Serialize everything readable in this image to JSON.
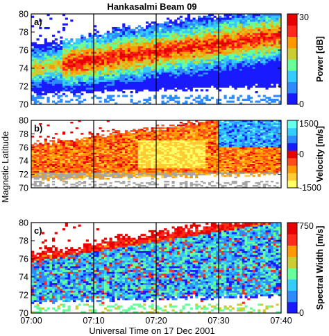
{
  "chart_data": {
    "type": "heatmap",
    "title": "Hankasalmi Beam 09",
    "xlabel": "Universal Time on 17 Dec 2001",
    "x_ticks": [
      "07:00",
      "07:10",
      "07:20",
      "07:30",
      "07:40"
    ],
    "x_range_minutes": [
      0,
      40
    ],
    "marker_lines_minutes": [
      10,
      20,
      30
    ],
    "shared_ylabel": "Magnetic Latitude",
    "ylim": [
      70,
      80
    ],
    "y_ticks": [
      "70",
      "72",
      "74",
      "76",
      "78",
      "80"
    ],
    "panels": [
      {
        "label": "a)",
        "quantity": "Power",
        "colorbar_label": "Power [dB]",
        "colorbar_ticks": [
          "0",
          "30"
        ],
        "colorbar_range": [
          0,
          30
        ],
        "colormap": [
          "#1a1aff",
          "#2e8bff",
          "#33ccff",
          "#66ff99",
          "#cccc33",
          "#ff9900",
          "#ff2a1a",
          "#e60000"
        ]
      },
      {
        "label": "b)",
        "quantity": "Velocity",
        "colorbar_label": "Velocity [m/s]",
        "colorbar_ticks": [
          "-1500",
          "0",
          "1500"
        ],
        "colorbar_range": [
          -1500,
          1500
        ],
        "colormap": [
          "#ffff66",
          "#ffcc33",
          "#ff9900",
          "#ff4d1a",
          "#e60000",
          "#1a1aff",
          "#2e8bff",
          "#33ccff",
          "#66ffee"
        ],
        "ground_scatter_color": "#a6a6a6"
      },
      {
        "label": "c)",
        "quantity": "Spectral Width",
        "colorbar_label": "Spectral Width [m/s]",
        "colorbar_ticks": [
          "0",
          "750"
        ],
        "colorbar_range": [
          0,
          750
        ],
        "colormap": [
          "#1a1aff",
          "#2e8bff",
          "#33ccff",
          "#66ff99",
          "#cccc33",
          "#ff9900",
          "#ff2a1a",
          "#e60000"
        ]
      }
    ]
  }
}
